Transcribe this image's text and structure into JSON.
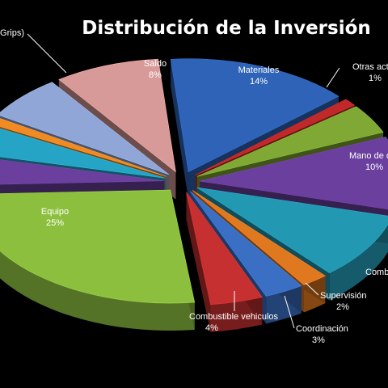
{
  "chart_data": {
    "type": "pie",
    "title": "Distribución de la Inversión",
    "slices": [
      {
        "label": "Materiales",
        "value": 14,
        "value_text": "14%",
        "color": "#2e63b8"
      },
      {
        "label": "Otras actividades",
        "value": 1,
        "value_text": "1%",
        "color": "#c0282a"
      },
      {
        "label": "",
        "value": 4,
        "value_text": "",
        "color": "#7fa834"
      },
      {
        "label": "Mano de obra colocación",
        "value": 10,
        "value_text": "10%",
        "color": "#6a3f9e"
      },
      {
        "label": "Combustible",
        "value": 9,
        "value_text": "",
        "color": "#2398b2"
      },
      {
        "label": "Supervisión",
        "value": 2,
        "value_text": "2%",
        "color": "#e07820"
      },
      {
        "label": "Coordinación",
        "value": 3,
        "value_text": "3%",
        "color": "#3a6fc4"
      },
      {
        "label": "Combustible vehiculos",
        "value": 4,
        "value_text": "4%",
        "color": "#c63030"
      },
      {
        "label": "Equipo",
        "value": 25,
        "value_text": "25%",
        "color": "#8dbf3f"
      },
      {
        "label": "",
        "value": 4,
        "value_text": "",
        "color": "#6a3f9e"
      },
      {
        "label": "",
        "value": 4,
        "value_text": "",
        "color": "#25a4c6"
      },
      {
        "label": "",
        "value": 1,
        "value_text": "",
        "color": "#f08a24"
      },
      {
        "label": "(Grips)",
        "value": 6,
        "value_text": "",
        "color": "#8fa6d6"
      },
      {
        "label": "Saldo",
        "value": 8,
        "value_text": "8%",
        "color": "#d79a98"
      }
    ]
  }
}
